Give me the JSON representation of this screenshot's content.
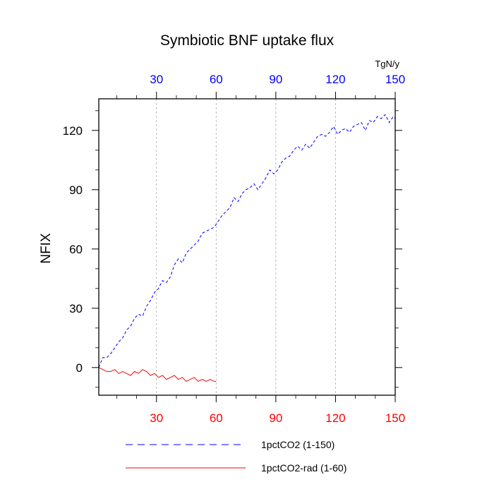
{
  "chart_data": {
    "type": "line",
    "title": "Symbiotic BNF uptake flux",
    "ylabel": "NFIX",
    "units": "TgN/y",
    "xlim": [
      1,
      150
    ],
    "ylim": [
      -14,
      136
    ],
    "xticks": [
      30,
      60,
      90,
      120,
      150
    ],
    "yticks": [
      0,
      30,
      60,
      90,
      120
    ],
    "grid": "vertical dashed at x ticks",
    "legend_position": "bottom",
    "colors": {
      "series1": "#0000ff",
      "series2": "#ff0000",
      "bottom_tick_labels": "#ff0000",
      "top_tick_labels": "#0000ff",
      "grid": "#aaaaaa"
    },
    "series": [
      {
        "name": "1pctCO2 (1-150)",
        "style": "dashed",
        "x": [
          1,
          3,
          5,
          7,
          9,
          11,
          13,
          15,
          17,
          19,
          21,
          23,
          25,
          27,
          29,
          31,
          33,
          35,
          37,
          39,
          41,
          43,
          45,
          47,
          49,
          51,
          53,
          55,
          57,
          59,
          61,
          63,
          65,
          67,
          69,
          71,
          73,
          75,
          77,
          79,
          81,
          83,
          85,
          87,
          89,
          91,
          93,
          95,
          97,
          99,
          101,
          103,
          105,
          107,
          109,
          111,
          113,
          115,
          117,
          119,
          121,
          123,
          125,
          127,
          129,
          131,
          133,
          135,
          137,
          139,
          141,
          143,
          145,
          147,
          149,
          150
        ],
        "y": [
          0,
          5,
          5,
          7,
          10,
          13,
          15,
          19,
          21,
          25,
          27,
          26,
          31,
          34,
          38,
          40,
          44,
          43,
          46,
          52,
          55,
          53,
          58,
          60,
          62,
          64,
          68,
          69,
          70,
          71,
          74,
          77,
          79,
          81,
          86,
          84,
          88,
          90,
          91,
          93,
          90,
          93,
          96,
          100,
          98,
          100,
          104,
          106,
          107,
          110,
          112,
          110,
          113,
          111,
          114,
          117,
          118,
          117,
          119,
          122,
          118,
          120,
          121,
          119,
          122,
          123,
          124,
          120,
          125,
          124,
          127,
          126,
          128,
          124,
          127,
          126
        ]
      },
      {
        "name": "1pctCO2-rad (1-60)",
        "style": "solid",
        "x": [
          1,
          3,
          5,
          7,
          9,
          11,
          13,
          15,
          17,
          19,
          21,
          23,
          25,
          27,
          29,
          31,
          33,
          35,
          37,
          39,
          41,
          43,
          45,
          47,
          49,
          51,
          53,
          55,
          57,
          59,
          60
        ],
        "y": [
          0,
          -1,
          -2,
          -2,
          -1,
          -3,
          -2,
          -3,
          -4,
          -2,
          -3,
          -1,
          -2,
          -4,
          -3,
          -5,
          -4,
          -6,
          -5,
          -4,
          -6,
          -5,
          -7,
          -6,
          -5,
          -7,
          -6,
          -7,
          -6,
          -7,
          -7
        ]
      }
    ]
  }
}
